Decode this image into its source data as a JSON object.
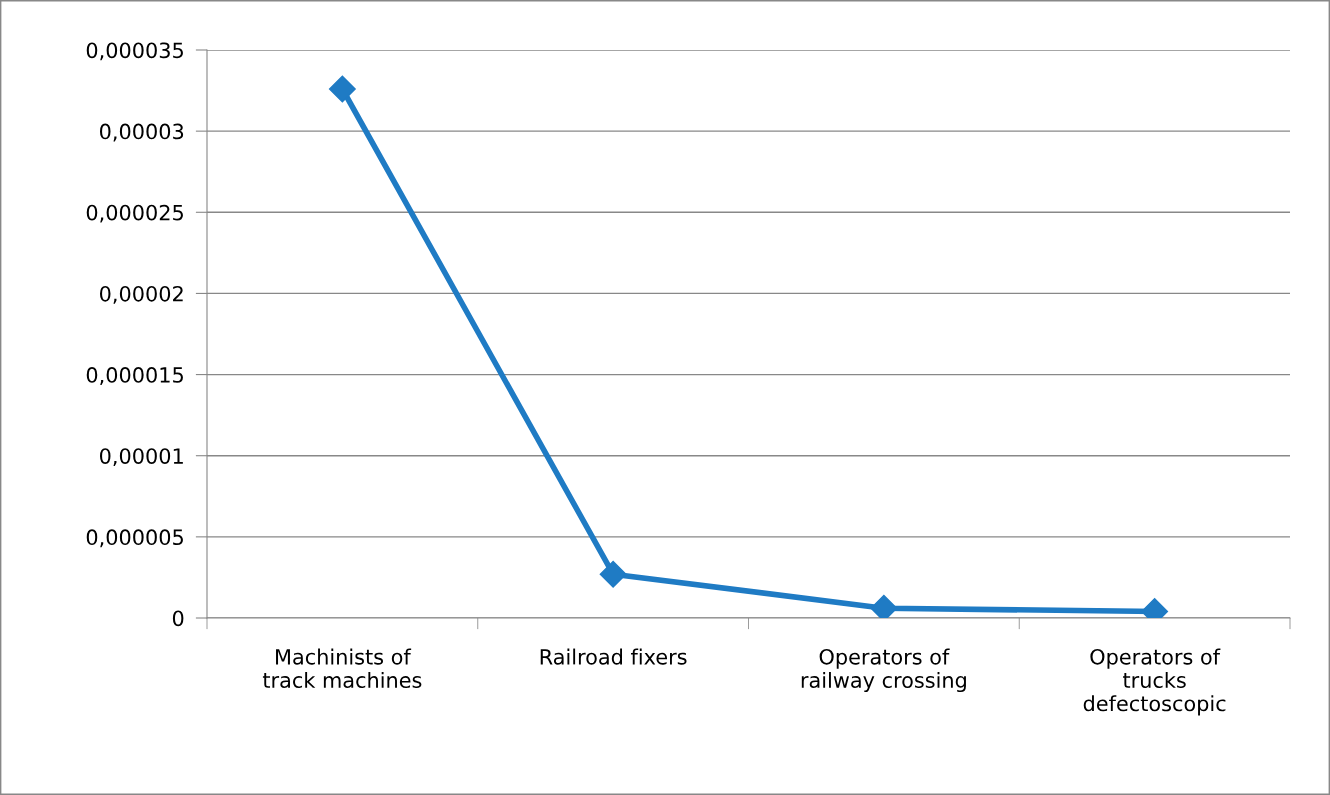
{
  "chart_data": {
    "type": "line",
    "categories": [
      "Machinists of\ntrack machines",
      "Railroad fixers",
      "Operators of\nrailway crossing",
      "Operators of\ntrucks\ndefectoscopic"
    ],
    "series": [
      {
        "color": "#1f7bc4",
        "values": [
          3.26e-05,
          2.7e-06,
          6e-07,
          4e-07
        ]
      }
    ],
    "ylim": [
      0,
      3.5e-05
    ],
    "yticks": [
      {
        "value": 0,
        "label": "0"
      },
      {
        "value": 5e-06,
        "label": "0,000005"
      },
      {
        "value": 1e-05,
        "label": "0,00001"
      },
      {
        "value": 1.5e-05,
        "label": "0,000015"
      },
      {
        "value": 2e-05,
        "label": "0,00002"
      },
      {
        "value": 2.5e-05,
        "label": "0,000025"
      },
      {
        "value": 3e-05,
        "label": "0,00003"
      },
      {
        "value": 3.5e-05,
        "label": "0,000035"
      }
    ],
    "grid": "y",
    "marker": "diamond",
    "line_style": "solid"
  }
}
